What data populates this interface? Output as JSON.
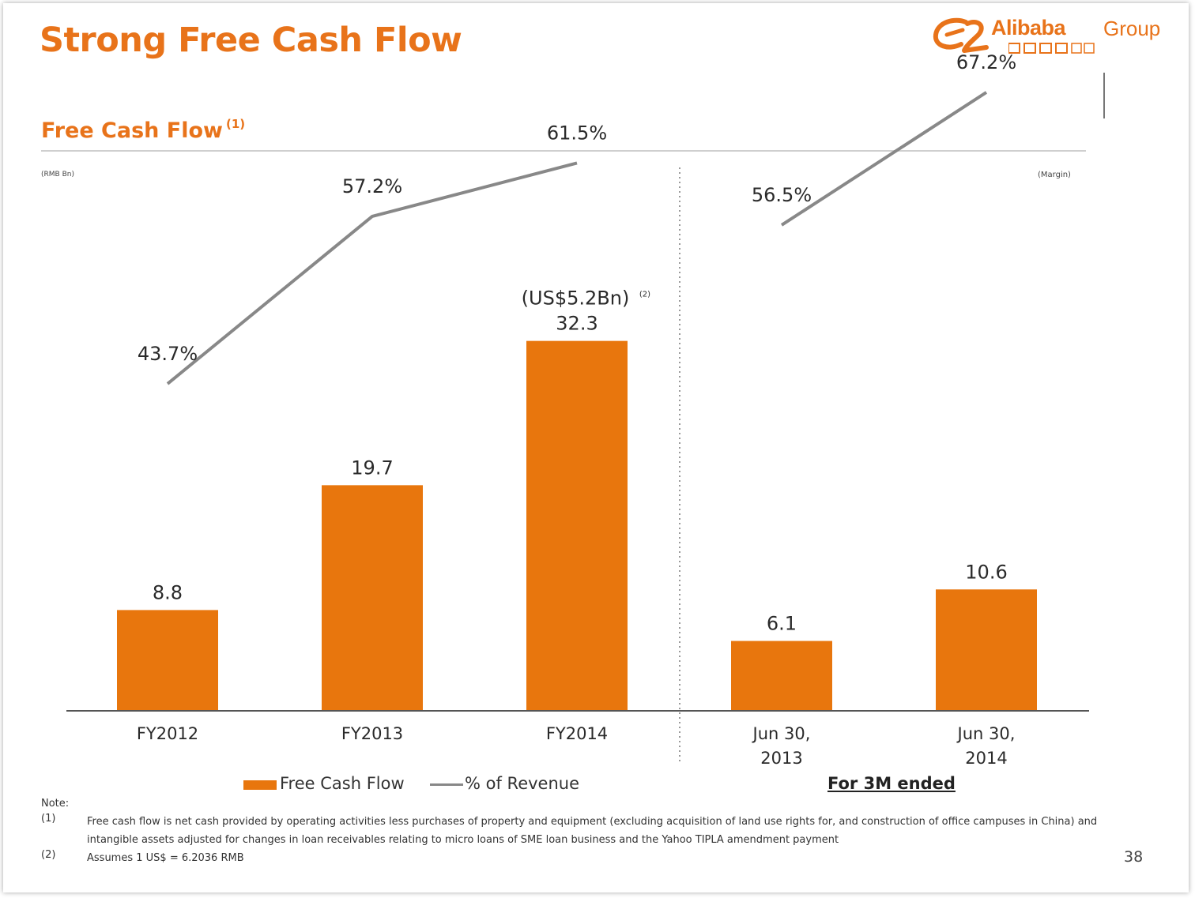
{
  "title": "Strong Free Cash Flow",
  "logo": {
    "brand": "Alibaba",
    "group": "Group"
  },
  "subtitle": "Free Cash Flow",
  "subtitle_footnote": "(1)",
  "unit_left": "(RMB Bn)",
  "unit_right": "(Margin)",
  "colors": {
    "accent": "#e8731a",
    "bar": "#e8760d",
    "line": "#888888"
  },
  "chart_data": {
    "type": "bar",
    "categories": [
      "FY2012",
      "FY2013",
      "FY2014",
      "Jun 30, 2013",
      "Jun 30, 2014"
    ],
    "category_lines": [
      [
        "FY2012"
      ],
      [
        "FY2013"
      ],
      [
        "FY2014"
      ],
      [
        "Jun 30,",
        "2013"
      ],
      [
        "Jun 30,",
        "2014"
      ]
    ],
    "series": [
      {
        "name": "Free Cash Flow",
        "type": "bar",
        "values": [
          8.8,
          19.7,
          32.3,
          6.1,
          10.6
        ],
        "labels": [
          "8.8",
          "19.7",
          "32.3",
          "6.1",
          "10.6"
        ]
      },
      {
        "name": "% of Revenue",
        "type": "line",
        "values": [
          43.7,
          57.2,
          61.5,
          56.5,
          67.2
        ],
        "labels": [
          "43.7%",
          "57.2%",
          "61.5%",
          "56.5%",
          "67.2%"
        ],
        "segments": [
          [
            0,
            1,
            2
          ],
          [
            3,
            4
          ]
        ]
      }
    ],
    "annotation": {
      "category_index": 2,
      "text": "(US$5.2Bn)",
      "footnote": "(2)"
    },
    "period_note": "For 3M ended",
    "ylim": [
      0,
      40
    ],
    "ylim_margin": [
      0,
      80
    ],
    "grid": false,
    "legend": "bottom"
  },
  "notes": {
    "heading": "Note:",
    "items": [
      {
        "num": "(1)",
        "text": "Free cash flow is net cash provided by operating activities less purchases of property and equipment (excluding acquisition of land use rights for, and construction of office campuses in China) and intangible assets adjusted for changes in loan receivables relating to micro loans of SME loan business and the Yahoo TIPLA amendment payment"
      },
      {
        "num": "(2)",
        "text": "Assumes 1 US$ = 6.2036 RMB"
      }
    ]
  },
  "page_number": "38"
}
